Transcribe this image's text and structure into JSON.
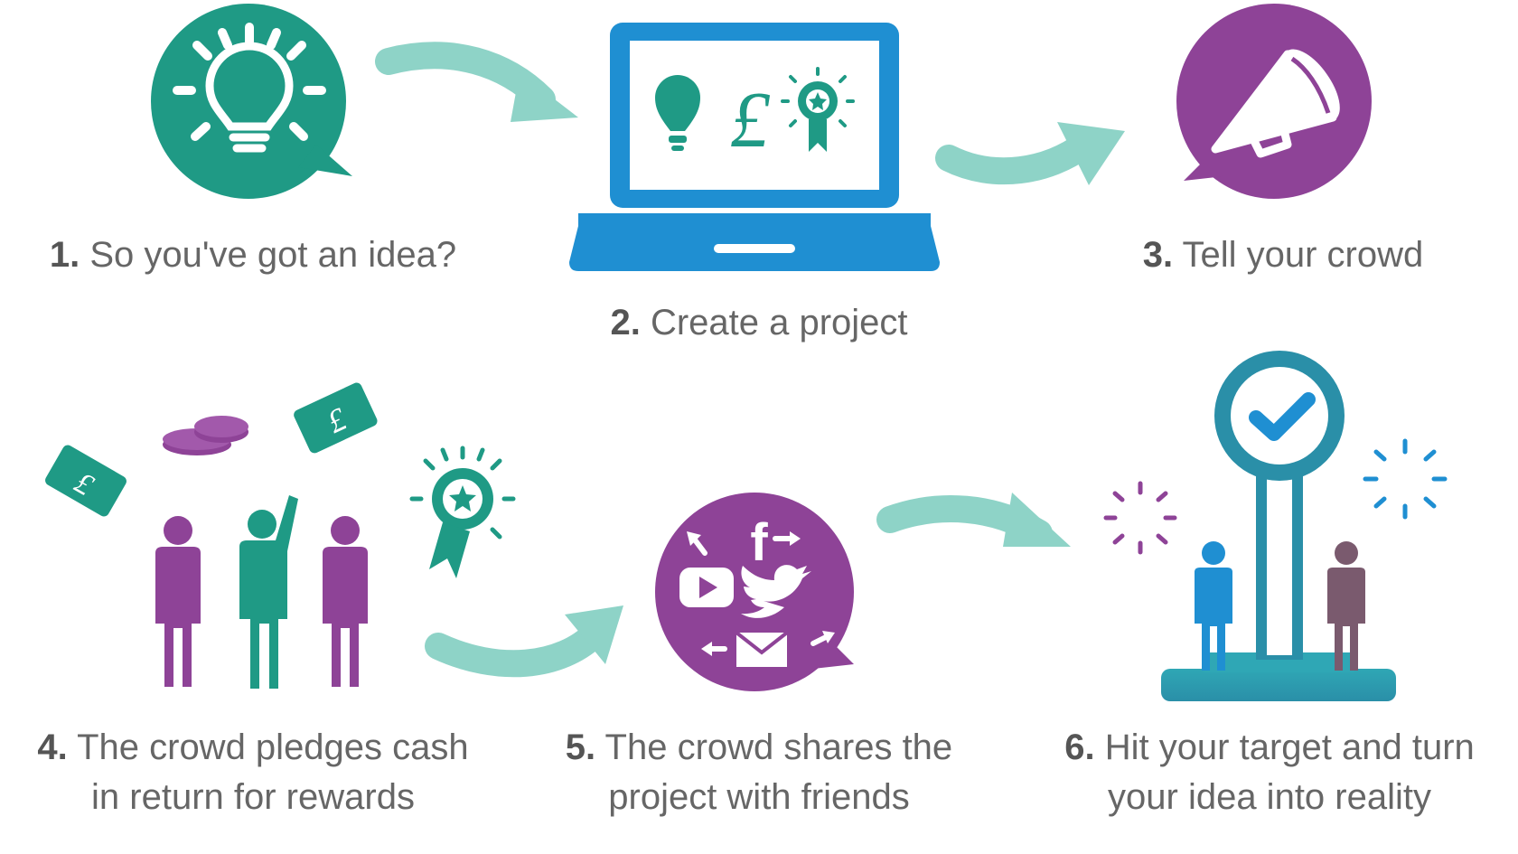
{
  "steps": [
    {
      "number": "1.",
      "line1": "So you've got an idea?",
      "line2": ""
    },
    {
      "number": "2.",
      "line1": "Create a project",
      "line2": ""
    },
    {
      "number": "3.",
      "line1": "Tell your crowd",
      "line2": ""
    },
    {
      "number": "4.",
      "line1": "The crowd pledges cash",
      "line2": "in return for rewards"
    },
    {
      "number": "5.",
      "line1": "The crowd shares the",
      "line2": "project with friends"
    },
    {
      "number": "6.",
      "line1": "Hit your target and turn",
      "line2": "your idea into reality"
    }
  ],
  "icons": {
    "pound_glyph": "£",
    "social_f": "f"
  },
  "colors": {
    "teal": "#1F9A85",
    "purple": "#8E4397",
    "blue": "#1F8FD2",
    "arrow": "#8ED3C7",
    "text": "#666666",
    "dark_teal": "#2A8FA8",
    "grey_purple": "#7A5A6E"
  }
}
